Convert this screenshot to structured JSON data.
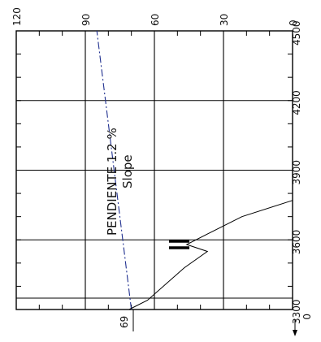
{
  "chart_data": {
    "type": "line",
    "x_axis": {
      "ticks": [
        3300,
        3600,
        3900,
        4200,
        4500
      ],
      "range": [
        3300,
        4500
      ]
    },
    "y_axis": {
      "ticks": [
        0,
        30,
        60,
        90,
        120
      ],
      "range": [
        0,
        120
      ]
    },
    "profile": {
      "x": [
        3300,
        3340,
        3480,
        3550,
        3580,
        3700,
        3770
      ],
      "y": [
        71,
        63,
        47,
        37,
        46,
        22,
        0
      ]
    },
    "slope_line": {
      "x": [
        3300,
        4500
      ],
      "y": [
        70,
        85
      ]
    },
    "labels": {
      "slope_es": "PENDIENTE 1.2 %",
      "slope_en": "Slope",
      "point_value": "69",
      "origin_note": "0"
    },
    "colors": {
      "slope_line": "#1f2f8f",
      "lines": "#000000"
    }
  }
}
